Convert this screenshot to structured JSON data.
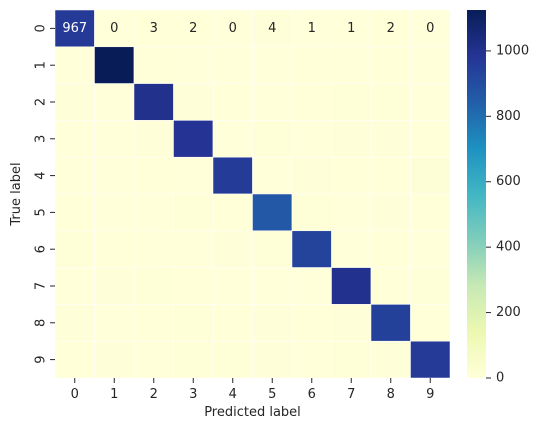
{
  "chart_data": {
    "type": "heatmap",
    "title": "",
    "xlabel": "Predicted label",
    "ylabel": "True label",
    "x_categories": [
      "0",
      "1",
      "2",
      "3",
      "4",
      "5",
      "6",
      "7",
      "8",
      "9"
    ],
    "y_categories": [
      "0",
      "1",
      "2",
      "3",
      "4",
      "5",
      "6",
      "7",
      "8",
      "9"
    ],
    "matrix": [
      [
        967,
        0,
        3,
        2,
        0,
        4,
        1,
        1,
        2,
        0
      ],
      [
        0,
        1125,
        3,
        1,
        0,
        1,
        2,
        0,
        3,
        0
      ],
      [
        5,
        1,
        1003,
        5,
        2,
        0,
        3,
        6,
        7,
        0
      ],
      [
        0,
        0,
        5,
        983,
        0,
        9,
        0,
        5,
        5,
        3
      ],
      [
        1,
        0,
        3,
        0,
        956,
        0,
        5,
        2,
        2,
        13
      ],
      [
        3,
        0,
        0,
        8,
        2,
        863,
        7,
        1,
        5,
        3
      ],
      [
        6,
        3,
        1,
        0,
        4,
        7,
        934,
        0,
        3,
        0
      ],
      [
        1,
        4,
        9,
        2,
        1,
        0,
        0,
        1000,
        2,
        9
      ],
      [
        4,
        1,
        3,
        7,
        3,
        4,
        3,
        4,
        942,
        3
      ],
      [
        3,
        5,
        0,
        7,
        9,
        4,
        0,
        8,
        4,
        969
      ]
    ],
    "annotated_cells": [
      [
        0,
        0
      ],
      [
        0,
        1
      ],
      [
        0,
        2
      ],
      [
        0,
        3
      ],
      [
        0,
        4
      ],
      [
        0,
        5
      ],
      [
        0,
        6
      ],
      [
        0,
        7
      ],
      [
        0,
        8
      ],
      [
        0,
        9
      ]
    ],
    "colorbar": {
      "colormap": "YlGnBu",
      "range": [
        0,
        1125
      ],
      "ticks": [
        0,
        200,
        400,
        600,
        800,
        1000
      ],
      "tick_labels": [
        "0",
        "200",
        "400",
        "600",
        "800",
        "1000"
      ]
    },
    "grid_lines": true,
    "colors": {
      "cell_border": "#ffffff",
      "text_dark": "#262626",
      "text_light": "#ffffff"
    }
  }
}
